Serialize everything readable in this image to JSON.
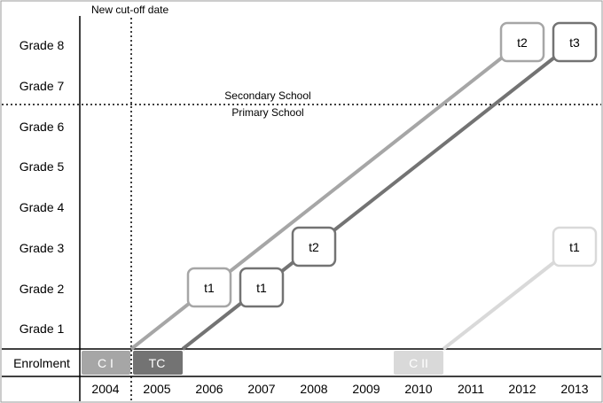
{
  "annotations": {
    "cutoff_label": "New cut-off date",
    "secondary_label": "Secondary School",
    "primary_label": "Primary School"
  },
  "grades": [
    "Grade 8",
    "Grade 7",
    "Grade 6",
    "Grade 5",
    "Grade 4",
    "Grade 3",
    "Grade 2",
    "Grade 1"
  ],
  "enrolment_label": "Enrolment",
  "years": [
    "2004",
    "2005",
    "2006",
    "2007",
    "2008",
    "2009",
    "2010",
    "2011",
    "2012",
    "2013"
  ],
  "enrolment_boxes": {
    "ci": "C I",
    "tc": "TC",
    "cii": "C II"
  },
  "cohort_boxes": {
    "ci_t1": "t1",
    "ci_t2": "t2",
    "tc_t1": "t1",
    "tc_t2": "t2",
    "tc_t3": "t3",
    "cii_t1": "t1"
  },
  "colors": {
    "ci": "#a6a6a6",
    "tc": "#737373",
    "cii": "#d9d9d9",
    "frame": "#000000"
  }
}
